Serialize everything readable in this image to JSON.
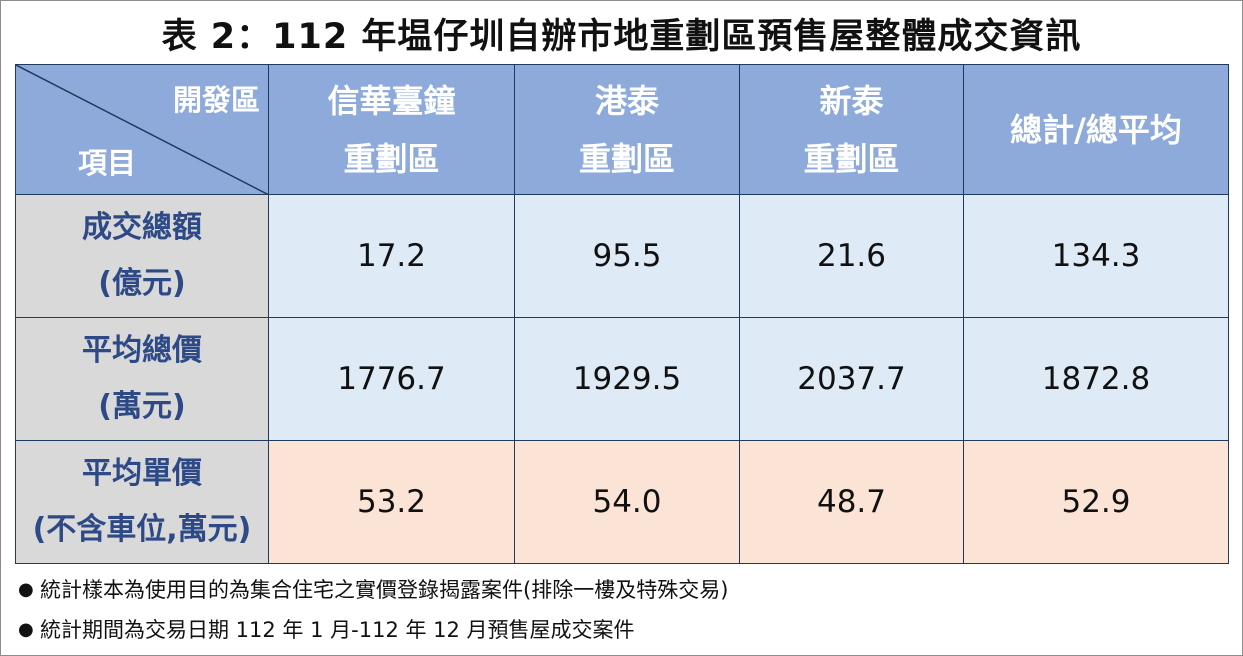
{
  "title": "表 2：112 年塭仔圳自辦市地重劃區預售屋整體成交資訊",
  "header": {
    "corner_top": "開發區",
    "corner_bottom": "項目",
    "columns": [
      {
        "line1": "信華臺鐘",
        "line2": "重劃區"
      },
      {
        "line1": "港泰",
        "line2": "重劃區"
      },
      {
        "line1": "新泰",
        "line2": "重劃區"
      },
      {
        "line1": "總計/總平均",
        "line2": ""
      }
    ]
  },
  "rows": [
    {
      "label1": "成交總額",
      "label2": "(億元)",
      "values": [
        "17.2",
        "95.5",
        "21.6",
        "134.3"
      ],
      "color": "#deeaf6"
    },
    {
      "label1": "平均總價",
      "label2": "(萬元)",
      "values": [
        "1776.7",
        "1929.5",
        "2037.7",
        "1872.8"
      ],
      "color": "#deeaf6"
    },
    {
      "label1": "平均單價",
      "label2": "(不含車位,萬元)",
      "values": [
        "53.2",
        "54.0",
        "48.7",
        "52.9"
      ],
      "color": "#fbe3d6"
    }
  ],
  "notes": [
    "統計樣本為使用目的為集合住宅之實價登錄揭露案件(排除一樓及特殊交易)",
    "統計期間為交易日期 112 年 1 月-112 年 12 月預售屋成交案件"
  ]
}
